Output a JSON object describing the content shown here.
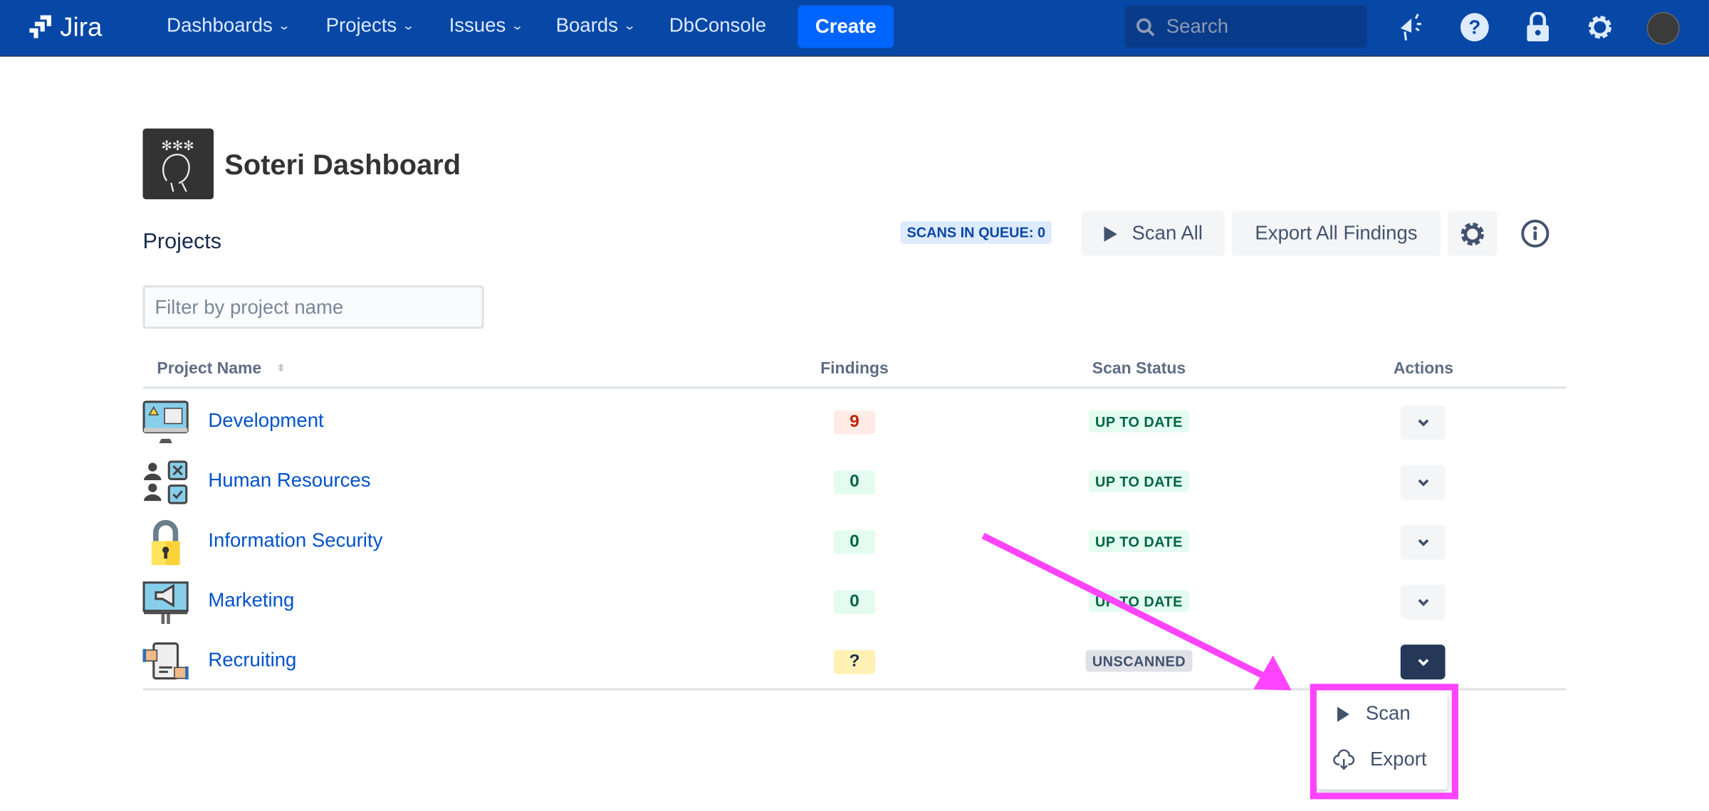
{
  "nav": {
    "brand": "Jira",
    "items": [
      {
        "label": "Dashboards",
        "dropdown": true
      },
      {
        "label": "Projects",
        "dropdown": true
      },
      {
        "label": "Issues",
        "dropdown": true
      },
      {
        "label": "Boards",
        "dropdown": true
      },
      {
        "label": "DbConsole",
        "dropdown": false
      }
    ],
    "create_label": "Create",
    "search_placeholder": "Search",
    "icons": [
      "megaphone-icon",
      "help-icon",
      "lock-icon",
      "gear-icon",
      "avatar"
    ]
  },
  "page": {
    "title": "Soteri Dashboard",
    "section": "Projects",
    "queue_badge": "SCANS IN QUEUE: 0",
    "scan_all": "Scan All",
    "export_all": "Export All Findings",
    "filter_placeholder": "Filter by project name"
  },
  "table": {
    "headers": [
      "Project Name",
      "Findings",
      "Scan Status",
      "Actions"
    ],
    "rows": [
      {
        "name": "Development",
        "findings": "9",
        "status": "UP TO DATE",
        "icon": "monitor-code-icon"
      },
      {
        "name": "Human Resources",
        "findings": "0",
        "status": "UP TO DATE",
        "icon": "people-checklist-icon"
      },
      {
        "name": "Information Security",
        "findings": "0",
        "status": "UP TO DATE",
        "icon": "padlock-icon"
      },
      {
        "name": "Marketing",
        "findings": "0",
        "status": "UP TO DATE",
        "icon": "billboard-megaphone-icon"
      },
      {
        "name": "Recruiting",
        "findings": "?",
        "status": "UNSCANNED",
        "icon": "handshake-document-icon"
      }
    ]
  },
  "menu": {
    "items": [
      {
        "label": "Scan",
        "icon": "play-icon"
      },
      {
        "label": "Export",
        "icon": "cloud-download-icon"
      }
    ]
  },
  "colors": {
    "nav": "#0747A6",
    "create": "#0065FF",
    "link": "#0052CC",
    "annotation": "#FF44FF",
    "active_action": "#253858"
  }
}
